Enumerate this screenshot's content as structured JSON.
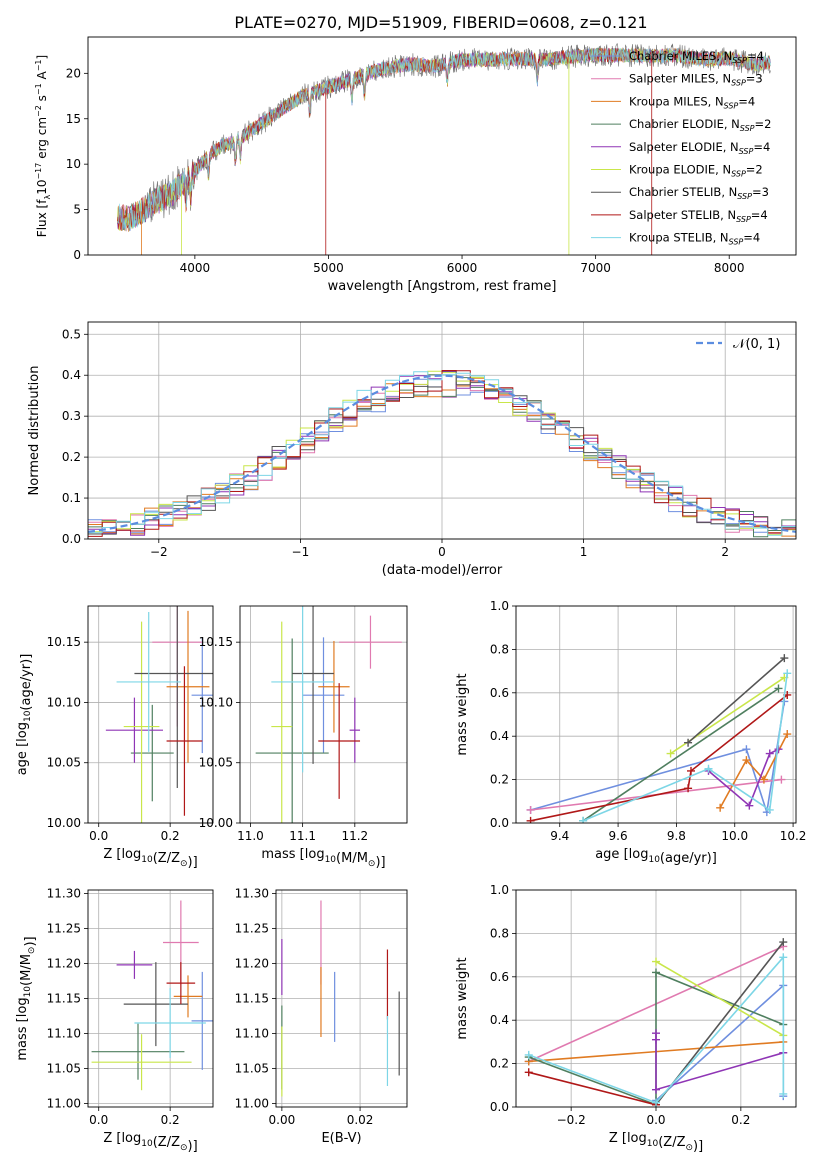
{
  "figure": {
    "title": "PLATE=0270, MJD=51909, FIBERID=0608, z=0.121"
  },
  "series_styles": [
    {
      "name": "Chabrier MILES",
      "nssp": "4",
      "color": "#6f8fdf"
    },
    {
      "name": "Salpeter MILES",
      "nssp": "3",
      "color": "#e07ab0"
    },
    {
      "name": "Kroupa MILES",
      "nssp": "4",
      "color": "#e07b22"
    },
    {
      "name": "Chabrier ELODIE",
      "nssp": "2",
      "color": "#4f7f5f"
    },
    {
      "name": "Salpeter ELODIE",
      "nssp": "4",
      "color": "#8f35b5"
    },
    {
      "name": "Kroupa ELODIE",
      "nssp": "2",
      "color": "#c9e64a"
    },
    {
      "name": "Chabrier STELIB",
      "nssp": "3",
      "color": "#555555"
    },
    {
      "name": "Salpeter STELIB",
      "nssp": "4",
      "color": "#b01818"
    },
    {
      "name": "Kroupa STELIB",
      "nssp": "4",
      "color": "#7dd6e6"
    }
  ],
  "chart_data": [
    {
      "id": "spectrum",
      "type": "line",
      "xlabel": "wavelength [Angstrom, rest frame]",
      "ylabel_parts": [
        "Flux [f",
        "λ",
        "10",
        "−17",
        " erg cm",
        "−2",
        " s",
        "−1",
        " A",
        "−1",
        "]"
      ],
      "xlim": [
        3200,
        8500
      ],
      "ylim": [
        0,
        24
      ],
      "xticks": [
        4000,
        5000,
        6000,
        7000,
        8000
      ],
      "yticks": [
        0,
        5,
        10,
        15,
        20
      ],
      "grid": false,
      "legend_position": "right",
      "continuum": {
        "x": [
          3420,
          3500,
          3600,
          3700,
          3800,
          3900,
          4000,
          4100,
          4200,
          4300,
          4400,
          4600,
          4800,
          5000,
          5200,
          5400,
          5600,
          5800,
          6000,
          6200,
          6400,
          6600,
          6800,
          7000,
          7200,
          7400,
          7600,
          7800,
          8000,
          8200,
          8300
        ],
        "y": [
          4.2,
          4.0,
          4.8,
          5.8,
          6.5,
          7.8,
          9.2,
          11.0,
          12.0,
          12.5,
          13.5,
          15.5,
          17.5,
          18.5,
          19.5,
          20.5,
          21.0,
          20.8,
          21.5,
          21.5,
          21.6,
          21.5,
          21.8,
          22.0,
          22.0,
          21.9,
          22.0,
          21.5,
          21.6,
          21.0,
          21.2
        ]
      }
    },
    {
      "id": "residuals",
      "type": "histogram",
      "xlabel": "(data-model)/error",
      "ylabel": "Normed distribution",
      "xlim": [
        -2.5,
        2.5
      ],
      "ylim": [
        0,
        0.53
      ],
      "xticks": [
        -2,
        -1,
        0,
        1,
        2
      ],
      "yticks": [
        0.0,
        0.1,
        0.2,
        0.3,
        0.4,
        0.5
      ],
      "grid": true,
      "legend": [
        "𝒩(0, 1)"
      ],
      "legend_position": "top-right",
      "bin_width": 0.1,
      "gaussian_reference": {
        "mean": 0,
        "sigma": 1
      }
    },
    {
      "id": "age-vs-Z",
      "type": "errorbar",
      "xlabel": "Z [log10(Z/Z⊙)]",
      "ylabel": "age  [log10(age/yr)]",
      "xlim": [
        -0.03,
        0.32
      ],
      "ylim": [
        10.0,
        10.18
      ],
      "xticks": [
        0.0,
        0.2
      ],
      "yticks": [
        10.0,
        10.05,
        10.1,
        10.15
      ],
      "grid": true,
      "points": [
        {
          "x": 0.29,
          "xerr": 0.03,
          "y": 10.106,
          "yerr": 0.048
        },
        {
          "x": 0.22,
          "xerr": 0.07,
          "y": 10.15,
          "yerr": 0.07
        },
        {
          "x": 0.25,
          "xerr": 0.06,
          "y": 10.113,
          "yerr": 0.063
        },
        {
          "x": 0.15,
          "xerr": 0.06,
          "y": 10.058,
          "yerr": 0.04
        },
        {
          "x": 0.1,
          "xerr": 0.08,
          "y": 10.077,
          "yerr": 0.027
        },
        {
          "x": 0.12,
          "xerr": 0.05,
          "y": 10.08,
          "yerr": 0.087
        },
        {
          "x": 0.22,
          "xerr": 0.12,
          "y": 10.124,
          "yerr": 0.095
        },
        {
          "x": 0.24,
          "xerr": 0.05,
          "y": 10.068,
          "yerr": 0.062
        },
        {
          "x": 0.14,
          "xerr": 0.09,
          "y": 10.117,
          "yerr": 0.058
        }
      ]
    },
    {
      "id": "age-vs-mass",
      "type": "errorbar",
      "xlabel": "mass [log10(M/M⊙)]",
      "ylabel": "",
      "xlim": [
        10.98,
        11.3
      ],
      "ylim": [
        10.0,
        10.18
      ],
      "xticks": [
        11.0,
        11.1,
        11.2
      ],
      "yticks": [
        10.0,
        10.05,
        10.1,
        10.15
      ],
      "grid": true,
      "points": [
        {
          "x": 11.14,
          "xerr": 0.04,
          "y": 10.106,
          "yerr": 0.048
        },
        {
          "x": 11.23,
          "xerr": 0.06,
          "y": 10.15,
          "yerr": 0.022
        },
        {
          "x": 11.16,
          "xerr": 0.03,
          "y": 10.113,
          "yerr": 0.038
        },
        {
          "x": 11.08,
          "xerr": 0.07,
          "y": 10.058,
          "yerr": 0.095
        },
        {
          "x": 11.2,
          "xerr": 0.01,
          "y": 10.077,
          "yerr": 0.027
        },
        {
          "x": 11.06,
          "xerr": 0.02,
          "y": 10.08,
          "yerr": 0.087
        },
        {
          "x": 11.12,
          "xerr": 0.04,
          "y": 10.124,
          "yerr": 0.075
        },
        {
          "x": 11.17,
          "xerr": 0.04,
          "y": 10.068,
          "yerr": 0.048
        },
        {
          "x": 11.1,
          "xerr": 0.06,
          "y": 10.117,
          "yerr": 0.075
        }
      ]
    },
    {
      "id": "weight-vs-age",
      "type": "line",
      "xlabel": "age  [log10(age/yr)]",
      "ylabel": "mass weight",
      "xlim": [
        9.25,
        10.21
      ],
      "ylim": [
        0.0,
        1.0
      ],
      "xticks": [
        9.4,
        9.6,
        9.8,
        10.0,
        10.2
      ],
      "yticks": [
        0.0,
        0.2,
        0.4,
        0.6,
        0.8,
        1.0
      ],
      "grid": true,
      "series": [
        {
          "x": [
            9.3,
            10.04,
            10.11,
            10.17
          ],
          "y": [
            0.06,
            0.34,
            0.05,
            0.56
          ]
        },
        {
          "x": [
            9.3,
            10.16
          ],
          "y": [
            0.06,
            0.2
          ]
        },
        {
          "x": [
            9.95,
            10.04,
            10.1,
            10.18
          ],
          "y": [
            0.07,
            0.29,
            0.2,
            0.41
          ]
        },
        {
          "x": [
            9.48,
            10.15
          ],
          "y": [
            0.01,
            0.62
          ]
        },
        {
          "x": [
            9.91,
            10.05,
            10.12,
            10.15
          ],
          "y": [
            0.24,
            0.08,
            0.32,
            0.34
          ]
        },
        {
          "x": [
            9.78,
            10.17
          ],
          "y": [
            0.32,
            0.67
          ]
        },
        {
          "x": [
            9.84,
            10.17
          ],
          "y": [
            0.37,
            0.76
          ]
        },
        {
          "x": [
            9.3,
            9.84,
            9.85,
            10.18
          ],
          "y": [
            0.01,
            0.16,
            0.24,
            0.59
          ]
        },
        {
          "x": [
            9.48,
            9.91,
            10.12,
            10.18
          ],
          "y": [
            0.01,
            0.25,
            0.06,
            0.69
          ]
        }
      ]
    },
    {
      "id": "mass-vs-Z",
      "type": "errorbar",
      "xlabel": "Z [log10(Z/Z⊙)]",
      "ylabel": "mass [log10(M/M⊙)]",
      "xlim": [
        -0.03,
        0.32
      ],
      "ylim": [
        10.995,
        11.305
      ],
      "xticks": [
        0.0,
        0.2
      ],
      "yticks": [
        11.0,
        11.05,
        11.1,
        11.15,
        11.2,
        11.25,
        11.3
      ],
      "grid": true,
      "points": [
        {
          "x": 0.29,
          "xerr": 0.03,
          "y": 11.118,
          "yerr": 0.07
        },
        {
          "x": 0.23,
          "xerr": 0.05,
          "y": 11.23,
          "yerr": 0.06
        },
        {
          "x": 0.25,
          "xerr": 0.04,
          "y": 11.153,
          "yerr": 0.03
        },
        {
          "x": 0.11,
          "xerr": 0.13,
          "y": 11.074,
          "yerr": 0.04
        },
        {
          "x": 0.1,
          "xerr": 0.05,
          "y": 11.198,
          "yerr": 0.02
        },
        {
          "x": 0.12,
          "xerr": 0.14,
          "y": 11.059,
          "yerr": 0.04
        },
        {
          "x": 0.16,
          "xerr": 0.09,
          "y": 11.142,
          "yerr": 0.06
        },
        {
          "x": 0.23,
          "xerr": 0.04,
          "y": 11.172,
          "yerr": 0.03
        },
        {
          "x": 0.2,
          "xerr": 0.1,
          "y": 11.115,
          "yerr": 0.05
        }
      ]
    },
    {
      "id": "mass-vs-ebv",
      "type": "errorbar",
      "xlabel": "E(B-V)",
      "ylabel": "",
      "xlim": [
        -0.0015,
        0.032
      ],
      "ylim": [
        10.995,
        11.305
      ],
      "xticks": [
        0.0,
        0.02
      ],
      "yticks": [
        11.0,
        11.05,
        11.1,
        11.15,
        11.2,
        11.25,
        11.3
      ],
      "grid": true,
      "points": [
        {
          "x": 0.0135,
          "xerr": 0,
          "y": 11.138,
          "yerr": 0.05
        },
        {
          "x": 0.01,
          "xerr": 0,
          "y": 11.23,
          "yerr": 0.06
        },
        {
          "x": 0.01,
          "xerr": 0,
          "y": 11.145,
          "yerr": 0.05
        },
        {
          "x": 0.0,
          "xerr": 0,
          "y": 11.08,
          "yerr": 0.06
        },
        {
          "x": 0.0,
          "xerr": 0,
          "y": 11.195,
          "yerr": 0.04
        },
        {
          "x": 0.0,
          "xerr": 0,
          "y": 11.06,
          "yerr": 0.05
        },
        {
          "x": 0.03,
          "xerr": 0,
          "y": 11.1,
          "yerr": 0.06
        },
        {
          "x": 0.027,
          "xerr": 0,
          "y": 11.17,
          "yerr": 0.05
        },
        {
          "x": 0.027,
          "xerr": 0,
          "y": 11.075,
          "yerr": 0.05
        }
      ]
    },
    {
      "id": "weight-vs-Z",
      "type": "line",
      "xlabel": "Z [log10(Z/Z⊙)]",
      "ylabel": "mass weight",
      "xlim": [
        -0.33,
        0.33
      ],
      "ylim": [
        0.0,
        1.0
      ],
      "xticks": [
        -0.2,
        0.0,
        0.2
      ],
      "yticks": [
        0.0,
        0.2,
        0.4,
        0.6,
        0.8,
        1.0
      ],
      "grid": true,
      "series": [
        {
          "x": [
            0.0,
            0.3,
            0.3
          ],
          "y": [
            0.03,
            0.56,
            0.05
          ]
        },
        {
          "x": [
            -0.3,
            0.3
          ],
          "y": [
            0.21,
            0.74
          ]
        },
        {
          "x": [
            -0.3,
            0.3
          ],
          "y": [
            0.21,
            0.3
          ]
        },
        {
          "x": [
            -0.3,
            0.0,
            0.0,
            0.3
          ],
          "y": [
            0.23,
            0.01,
            0.62,
            0.38
          ]
        },
        {
          "x": [
            0.0,
            0.0,
            0.0,
            0.3
          ],
          "y": [
            0.34,
            0.31,
            0.08,
            0.25
          ]
        },
        {
          "x": [
            0.0,
            0.3
          ],
          "y": [
            0.67,
            0.33
          ]
        },
        {
          "x": [
            0.0,
            0.3
          ],
          "y": [
            0.01,
            0.76
          ]
        },
        {
          "x": [
            -0.3,
            0.0
          ],
          "y": [
            0.16,
            0.01
          ]
        },
        {
          "x": [
            -0.3,
            0.0,
            0.3,
            0.3
          ],
          "y": [
            0.24,
            0.02,
            0.69,
            0.06
          ]
        }
      ]
    }
  ]
}
